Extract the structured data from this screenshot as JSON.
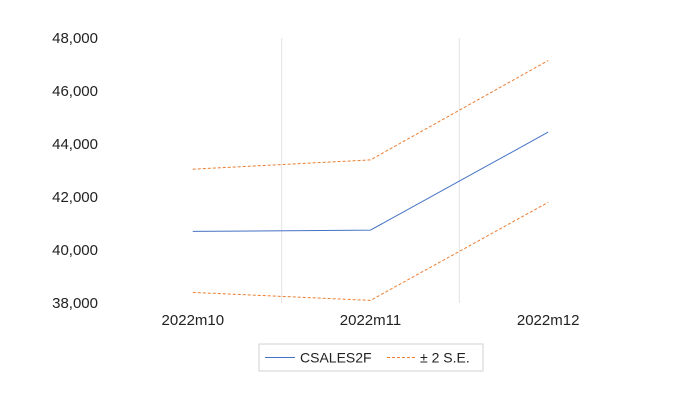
{
  "chart_data": {
    "type": "line",
    "categories": [
      "2022m10",
      "2022m11",
      "2022m12"
    ],
    "ylim": [
      38000,
      48000
    ],
    "yticks": [
      38000,
      40000,
      42000,
      44000,
      46000,
      48000
    ],
    "ytick_labels": [
      "38,000",
      "40,000",
      "42,000",
      "44,000",
      "46,000",
      "48,000"
    ],
    "series": [
      {
        "name": "CSALES2F",
        "values": [
          40700,
          40750,
          44450
        ],
        "color": "#4472c4",
        "style": "solid"
      },
      {
        "name": "± 2 S.E.",
        "values": [
          43050,
          43400,
          47150
        ],
        "color": "#ed7d31",
        "style": "dashed"
      },
      {
        "values": [
          38400,
          38100,
          41800
        ],
        "color": "#ed7d31",
        "style": "dashed"
      }
    ],
    "vertical_gridlines": "between categories",
    "legend_position": "bottom"
  }
}
